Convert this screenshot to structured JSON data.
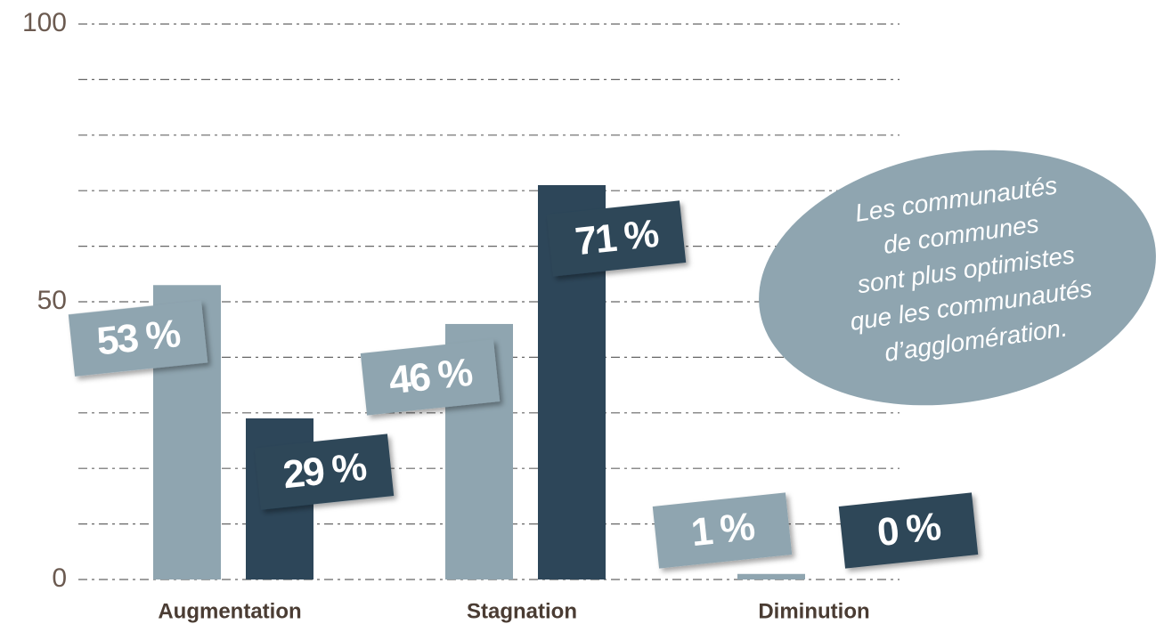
{
  "chart_data": {
    "type": "bar",
    "categories": [
      "Augmentation",
      "Stagnation",
      "Diminution"
    ],
    "series": [
      {
        "color": "#8fa5b0",
        "values": [
          53,
          46,
          1
        ],
        "value_labels": [
          "53 %",
          "46 %",
          "1 %"
        ]
      },
      {
        "color": "#2d4659",
        "values": [
          29,
          71,
          0
        ],
        "value_labels": [
          "29 %",
          "71 %",
          "0 %"
        ]
      }
    ],
    "ylim": [
      0,
      100
    ],
    "yticks": [
      0,
      50,
      100
    ],
    "minor_yticks": [
      0,
      10,
      20,
      30,
      40,
      50,
      60,
      70,
      80,
      90,
      100
    ],
    "grid": true,
    "annotation": [
      "Les communautés",
      "de communes",
      "sont plus optimistes",
      "que les communautés",
      "d’agglomération."
    ],
    "annotation_color": "#8fa5b0"
  }
}
